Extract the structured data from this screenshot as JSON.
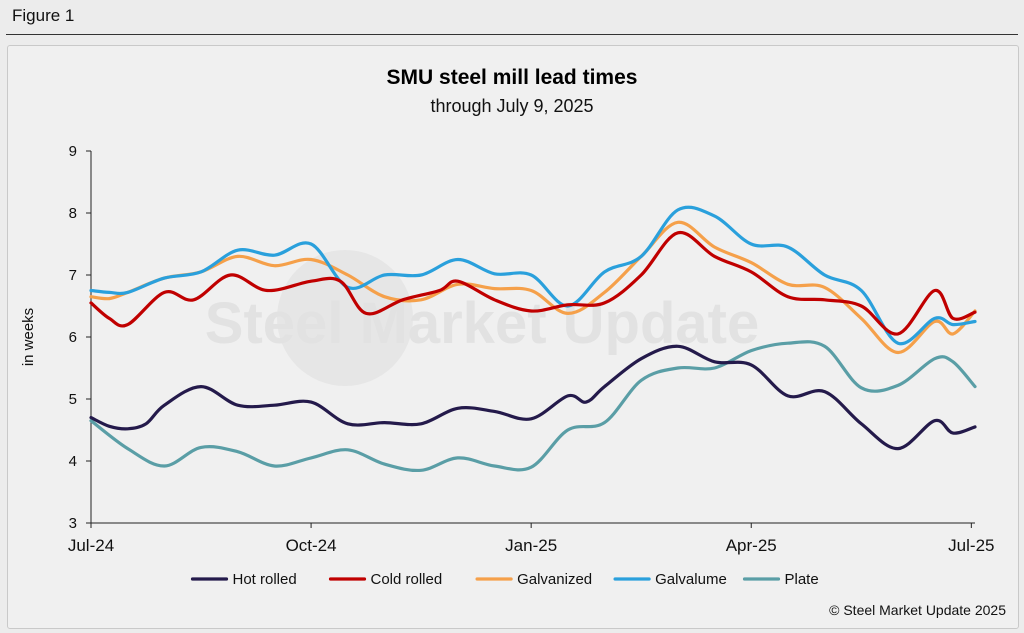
{
  "figure_label": "Figure 1",
  "copyright": "© Steel Market Update 2025",
  "watermark_logo_text": "Steel Market Update",
  "chart_data": {
    "type": "line",
    "title": "SMU steel mill lead times",
    "subtitle": "through July 9, 2025",
    "ylabel": "in weeks",
    "xlabel": "",
    "ylim": [
      3,
      9
    ],
    "yticks": [
      3,
      4,
      5,
      6,
      7,
      8,
      9
    ],
    "xlim": [
      0,
      24.1
    ],
    "x_tick_labels": [
      {
        "x": 0,
        "label": "Jul-24"
      },
      {
        "x": 6,
        "label": "Oct-24"
      },
      {
        "x": 12,
        "label": "Jan-25"
      },
      {
        "x": 18,
        "label": "Apr-25"
      },
      {
        "x": 24,
        "label": "Jul-25"
      }
    ],
    "x_unit": "semi-monthly survey periods (two per month) starting Jul-24",
    "grid": false,
    "legend_position": "bottom",
    "series": [
      {
        "name": "Hot rolled",
        "color": "#241a4b",
        "points": [
          [
            0,
            4.7
          ],
          [
            0.5,
            4.56
          ],
          [
            1,
            4.52
          ],
          [
            1.5,
            4.6
          ],
          [
            2,
            4.9
          ],
          [
            3,
            5.2
          ],
          [
            4,
            4.9
          ],
          [
            5,
            4.9
          ],
          [
            6,
            4.95
          ],
          [
            7,
            4.6
          ],
          [
            8,
            4.62
          ],
          [
            9,
            4.6
          ],
          [
            10,
            4.85
          ],
          [
            11,
            4.8
          ],
          [
            12,
            4.68
          ],
          [
            13,
            5.05
          ],
          [
            13.5,
            4.95
          ],
          [
            14,
            5.2
          ],
          [
            15,
            5.65
          ],
          [
            16,
            5.85
          ],
          [
            17,
            5.6
          ],
          [
            18,
            5.55
          ],
          [
            19,
            5.05
          ],
          [
            20,
            5.12
          ],
          [
            21,
            4.6
          ],
          [
            22,
            4.2
          ],
          [
            23,
            4.65
          ],
          [
            23.5,
            4.45
          ],
          [
            24.1,
            4.55
          ]
        ]
      },
      {
        "name": "Cold rolled",
        "color": "#c00000",
        "points": [
          [
            0,
            6.55
          ],
          [
            0.5,
            6.3
          ],
          [
            1,
            6.2
          ],
          [
            2,
            6.72
          ],
          [
            2.8,
            6.6
          ],
          [
            3.8,
            7.0
          ],
          [
            4.8,
            6.75
          ],
          [
            6,
            6.9
          ],
          [
            6.8,
            6.9
          ],
          [
            7.5,
            6.38
          ],
          [
            8.5,
            6.6
          ],
          [
            9.5,
            6.75
          ],
          [
            10,
            6.9
          ],
          [
            11,
            6.6
          ],
          [
            12,
            6.42
          ],
          [
            13,
            6.52
          ],
          [
            14,
            6.55
          ],
          [
            15,
            7.0
          ],
          [
            16,
            7.68
          ],
          [
            17,
            7.3
          ],
          [
            18,
            7.05
          ],
          [
            19,
            6.65
          ],
          [
            20,
            6.6
          ],
          [
            21,
            6.5
          ],
          [
            22,
            6.05
          ],
          [
            23,
            6.75
          ],
          [
            23.5,
            6.3
          ],
          [
            24.1,
            6.4
          ]
        ]
      },
      {
        "name": "Galvanized",
        "color": "#f5a04a",
        "points": [
          [
            0,
            6.65
          ],
          [
            0.5,
            6.62
          ],
          [
            1,
            6.72
          ],
          [
            2,
            6.95
          ],
          [
            3,
            7.05
          ],
          [
            4,
            7.3
          ],
          [
            5,
            7.15
          ],
          [
            6,
            7.25
          ],
          [
            7,
            7.0
          ],
          [
            8,
            6.65
          ],
          [
            9,
            6.6
          ],
          [
            10,
            6.85
          ],
          [
            11,
            6.78
          ],
          [
            12,
            6.75
          ],
          [
            13,
            6.38
          ],
          [
            14,
            6.72
          ],
          [
            15,
            7.3
          ],
          [
            16,
            7.85
          ],
          [
            17,
            7.45
          ],
          [
            18,
            7.2
          ],
          [
            19,
            6.85
          ],
          [
            20,
            6.8
          ],
          [
            21,
            6.3
          ],
          [
            22,
            5.75
          ],
          [
            23,
            6.25
          ],
          [
            23.5,
            6.05
          ],
          [
            24.1,
            6.42
          ]
        ]
      },
      {
        "name": "Galvalume",
        "color": "#2aa0dc",
        "points": [
          [
            0,
            6.75
          ],
          [
            0.5,
            6.72
          ],
          [
            1,
            6.72
          ],
          [
            2,
            6.95
          ],
          [
            3,
            7.05
          ],
          [
            4,
            7.4
          ],
          [
            5,
            7.32
          ],
          [
            6,
            7.5
          ],
          [
            7,
            6.8
          ],
          [
            8,
            7.0
          ],
          [
            9,
            7.0
          ],
          [
            10,
            7.25
          ],
          [
            11,
            7.02
          ],
          [
            12,
            7.0
          ],
          [
            13,
            6.5
          ],
          [
            14,
            7.05
          ],
          [
            15,
            7.3
          ],
          [
            16,
            8.05
          ],
          [
            17,
            7.95
          ],
          [
            18,
            7.5
          ],
          [
            19,
            7.45
          ],
          [
            20,
            7.0
          ],
          [
            21,
            6.75
          ],
          [
            22,
            5.9
          ],
          [
            23,
            6.3
          ],
          [
            23.5,
            6.2
          ],
          [
            24.1,
            6.25
          ]
        ]
      },
      {
        "name": "Plate",
        "color": "#5a9ea6",
        "points": [
          [
            0,
            4.65
          ],
          [
            1,
            4.2
          ],
          [
            2,
            3.92
          ],
          [
            3,
            4.22
          ],
          [
            4,
            4.15
          ],
          [
            5,
            3.92
          ],
          [
            6,
            4.05
          ],
          [
            7,
            4.18
          ],
          [
            8,
            3.95
          ],
          [
            9,
            3.85
          ],
          [
            10,
            4.05
          ],
          [
            11,
            3.92
          ],
          [
            12,
            3.9
          ],
          [
            13,
            4.5
          ],
          [
            14,
            4.62
          ],
          [
            15,
            5.3
          ],
          [
            16,
            5.5
          ],
          [
            17,
            5.5
          ],
          [
            18,
            5.78
          ],
          [
            19,
            5.9
          ],
          [
            20,
            5.85
          ],
          [
            21,
            5.18
          ],
          [
            22,
            5.22
          ],
          [
            23,
            5.65
          ],
          [
            23.5,
            5.6
          ],
          [
            24.1,
            5.2
          ]
        ]
      }
    ]
  }
}
